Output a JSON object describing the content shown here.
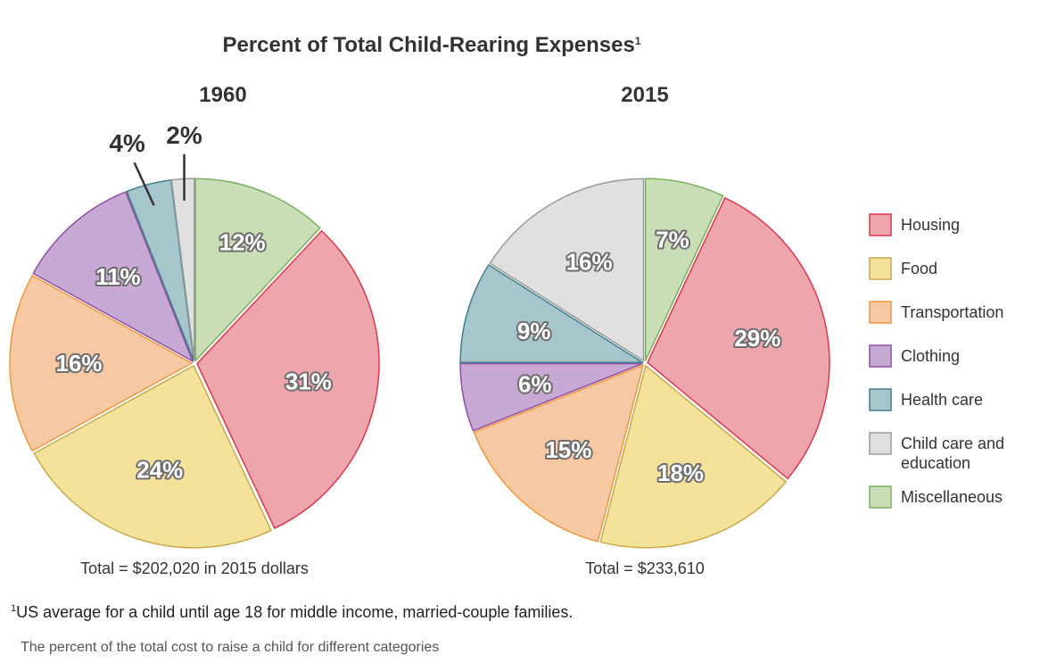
{
  "chart_data": {
    "type": "pie",
    "title": "Percent of Total Child-Rearing Expenses",
    "title_footnote_marker": "1",
    "legend": {
      "placement": "right",
      "entries": [
        {
          "name": "Housing",
          "color": "#eea6ac",
          "stroke": "#d9394b"
        },
        {
          "name": "Food",
          "color": "#f4e29a",
          "stroke": "#c9a94a"
        },
        {
          "name": "Transportation",
          "color": "#f6c9a3",
          "stroke": "#f0963e"
        },
        {
          "name": "Clothing",
          "color": "#c7a9d3",
          "stroke": "#8d4fa4"
        },
        {
          "name": "Health care",
          "color": "#a7c6cc",
          "stroke": "#3f7f8c"
        },
        {
          "name": "Child care and education",
          "color": "#e0e0e0",
          "stroke": "#9a9a9a"
        },
        {
          "name": "Miscellaneous",
          "color": "#c9deb6",
          "stroke": "#79b05b"
        }
      ]
    },
    "pies": [
      {
        "year": "1960",
        "total_label": "Total = $202,020 in 2015 dollars",
        "slice_order": [
          "Miscellaneous",
          "Housing",
          "Food",
          "Transportation",
          "Clothing",
          "Health care",
          "Child care and education"
        ],
        "values": [
          12,
          31,
          24,
          16,
          11,
          4,
          2
        ],
        "labels": [
          "12%",
          "31%",
          "24%",
          "16%",
          "11%",
          "4%",
          "2%"
        ],
        "callouts": [
          "Health care",
          "Child care and education"
        ]
      },
      {
        "year": "2015",
        "total_label": "Total = $233,610",
        "slice_order": [
          "Miscellaneous",
          "Housing",
          "Food",
          "Transportation",
          "Clothing",
          "Health care",
          "Child care and education"
        ],
        "values": [
          7,
          29,
          18,
          15,
          6,
          9,
          16
        ],
        "labels": [
          "7%",
          "29%",
          "18%",
          "15%",
          "6%",
          "9%",
          "16%"
        ],
        "callouts": []
      }
    ]
  },
  "footnote": {
    "marker": "1",
    "text": "US average for a child until age 18 for middle income, married-couple families."
  },
  "caption": "The percent of the total cost to raise a child for different categories"
}
